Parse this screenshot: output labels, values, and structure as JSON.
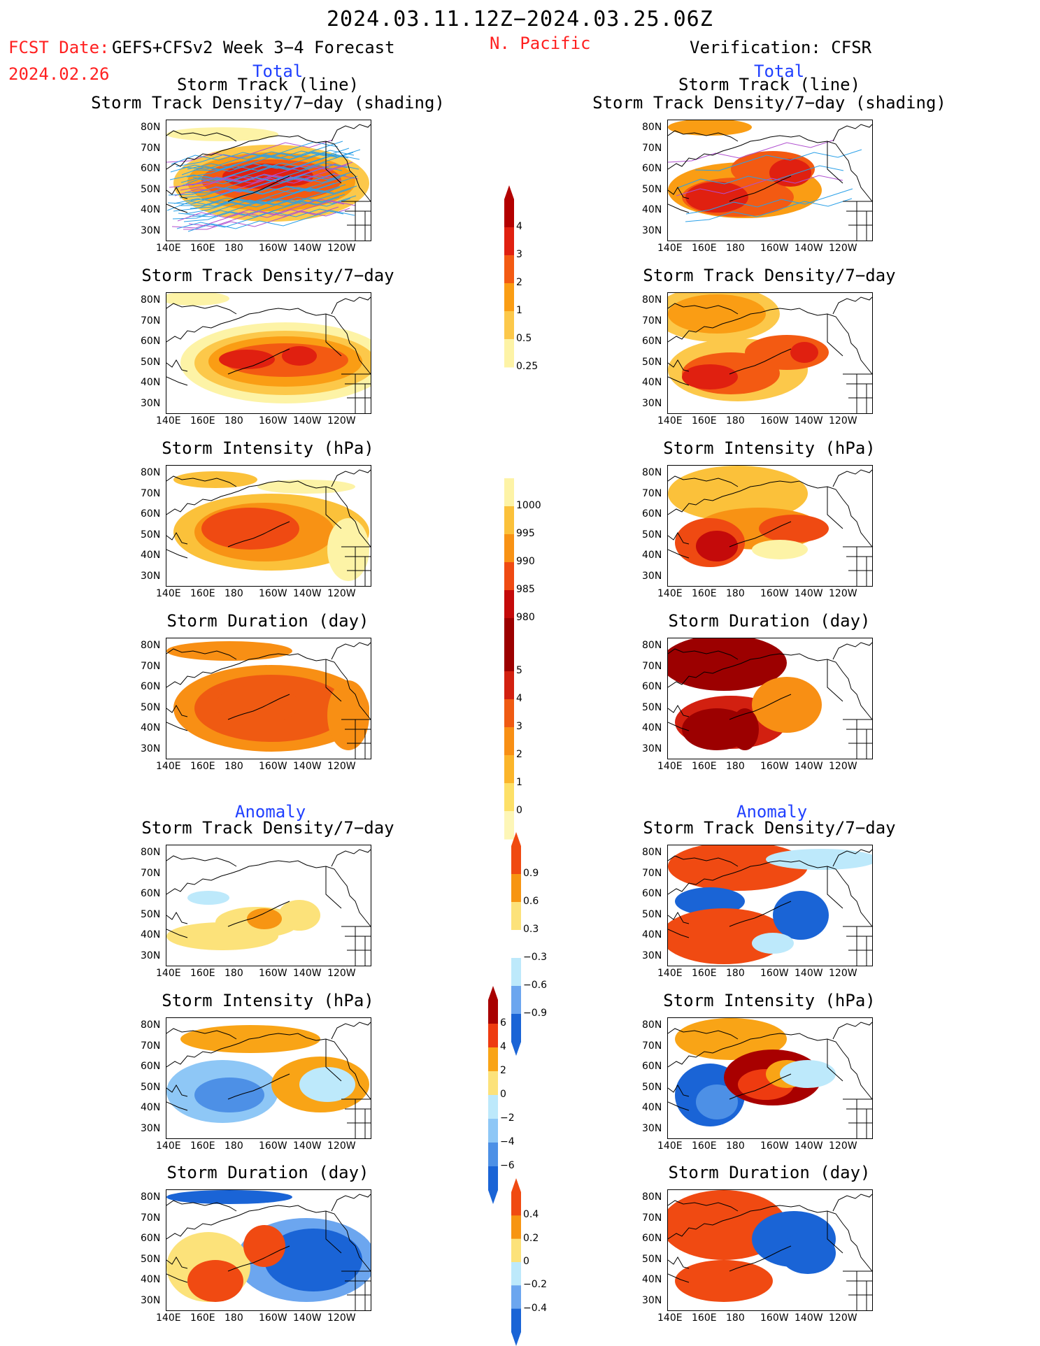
{
  "header": {
    "period": "2024.03.11.12Z−2024.03.25.06Z",
    "fcst_label": "FCST Date:",
    "fcst_date": "2024.02.26",
    "left_title": "GEFS+CFSv2 Week 3−4 Forecast",
    "region": "N. Pacific",
    "right_title": "Verification: CFSR",
    "total_left": "Total",
    "total_right": "Total",
    "anomaly_left": "Anomaly",
    "anomaly_right": "Anomaly"
  },
  "panel_titles": {
    "track_line": "Storm Track (line)",
    "track_shading": "Storm Track Density/7−day (shading)",
    "density": "Storm Track Density/7−day",
    "intensity": "Storm Intensity (hPa)",
    "duration": "Storm Duration (day)"
  },
  "axes": {
    "lat_ticks": [
      "80N",
      "70N",
      "60N",
      "50N",
      "40N",
      "30N"
    ],
    "lon_ticks": [
      "140E",
      "160E",
      "180",
      "160W",
      "140W",
      "120W"
    ]
  },
  "colorbars": {
    "density_total": {
      "labels": [
        "4",
        "3",
        "2",
        "1",
        "0.5",
        "0.25"
      ],
      "colors": [
        "#b30000",
        "#e02010",
        "#f35a12",
        "#fa9d14",
        "#fcc84a",
        "#fdf3a6"
      ]
    },
    "intensity_total": {
      "labels": [
        "1000",
        "995",
        "990",
        "985",
        "980"
      ],
      "colors": [
        "#fdf3a6",
        "#fbc13a",
        "#f89214",
        "#ef4a12",
        "#c40a0a",
        "#9c0000"
      ]
    },
    "duration_total": {
      "labels": [
        "5",
        "4",
        "3",
        "2",
        "1",
        "0"
      ],
      "colors": [
        "#9c0000",
        "#d22010",
        "#ef5a12",
        "#f88f14",
        "#fbb52a",
        "#fde067",
        "#fdf6b7"
      ]
    },
    "density_anom": {
      "labels": [
        "0.9",
        "0.6",
        "0.3",
        "−0.3",
        "−0.6",
        "−0.9"
      ],
      "colors": [
        "#f04a12",
        "#f79512",
        "#fce27a",
        "#ffffff",
        "#bde9fb",
        "#6ca6ef",
        "#1a64d6"
      ]
    },
    "intensity_anom": {
      "labels": [
        "6",
        "4",
        "2",
        "0",
        "−2",
        "−4",
        "−6"
      ],
      "colors": [
        "#a80000",
        "#ee3b10",
        "#f9a416",
        "#fce27a",
        "#bde9fb",
        "#8ec7f6",
        "#4d90e6",
        "#1a64d6"
      ]
    },
    "duration_anom": {
      "labels": [
        "0.4",
        "0.2",
        "0",
        "−0.2",
        "−0.4"
      ],
      "colors": [
        "#f04a12",
        "#f79512",
        "#fce27a",
        "#bde9fb",
        "#6ca6ef",
        "#1a64d6"
      ]
    }
  }
}
